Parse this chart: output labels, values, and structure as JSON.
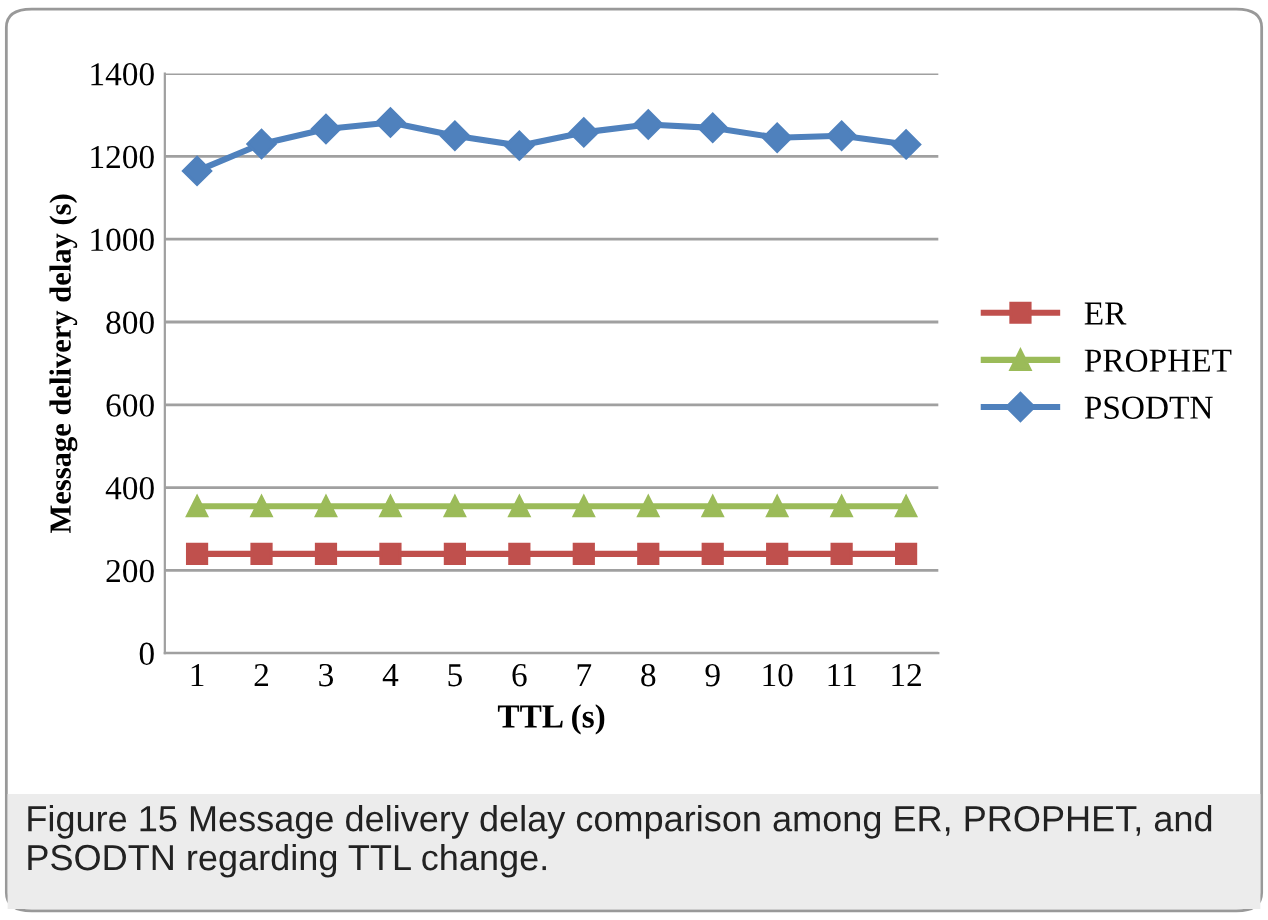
{
  "chart_data": {
    "type": "line",
    "xlabel": "TTL (s)",
    "ylabel": "Message delivery delay (s)",
    "categories": [
      "1",
      "2",
      "3",
      "4",
      "5",
      "6",
      "7",
      "8",
      "9",
      "10",
      "11",
      "12"
    ],
    "series": [
      {
        "name": "ER",
        "color": "#c0504d",
        "marker": "square",
        "values": [
          240,
          240,
          240,
          240,
          240,
          240,
          240,
          240,
          240,
          240,
          240,
          240
        ]
      },
      {
        "name": "PROPHET",
        "color": "#9bbb59",
        "marker": "triangle",
        "values": [
          355,
          355,
          355,
          355,
          355,
          355,
          355,
          355,
          355,
          355,
          355,
          355
        ]
      },
      {
        "name": "PSODTN",
        "color": "#4f81bd",
        "marker": "diamond",
        "values": [
          1165,
          1230,
          1266,
          1282,
          1250,
          1226,
          1258,
          1277,
          1269,
          1245,
          1250,
          1229
        ]
      }
    ],
    "ylim": [
      0,
      1400
    ],
    "yticks": [
      0,
      200,
      400,
      600,
      800,
      1000,
      1200,
      1400
    ],
    "grid": "y",
    "legend": "right",
    "annotations": [
      "Figure 15 Message delivery delay comparison among ER, PROPHET, and PSODTN regarding TTL change."
    ]
  }
}
